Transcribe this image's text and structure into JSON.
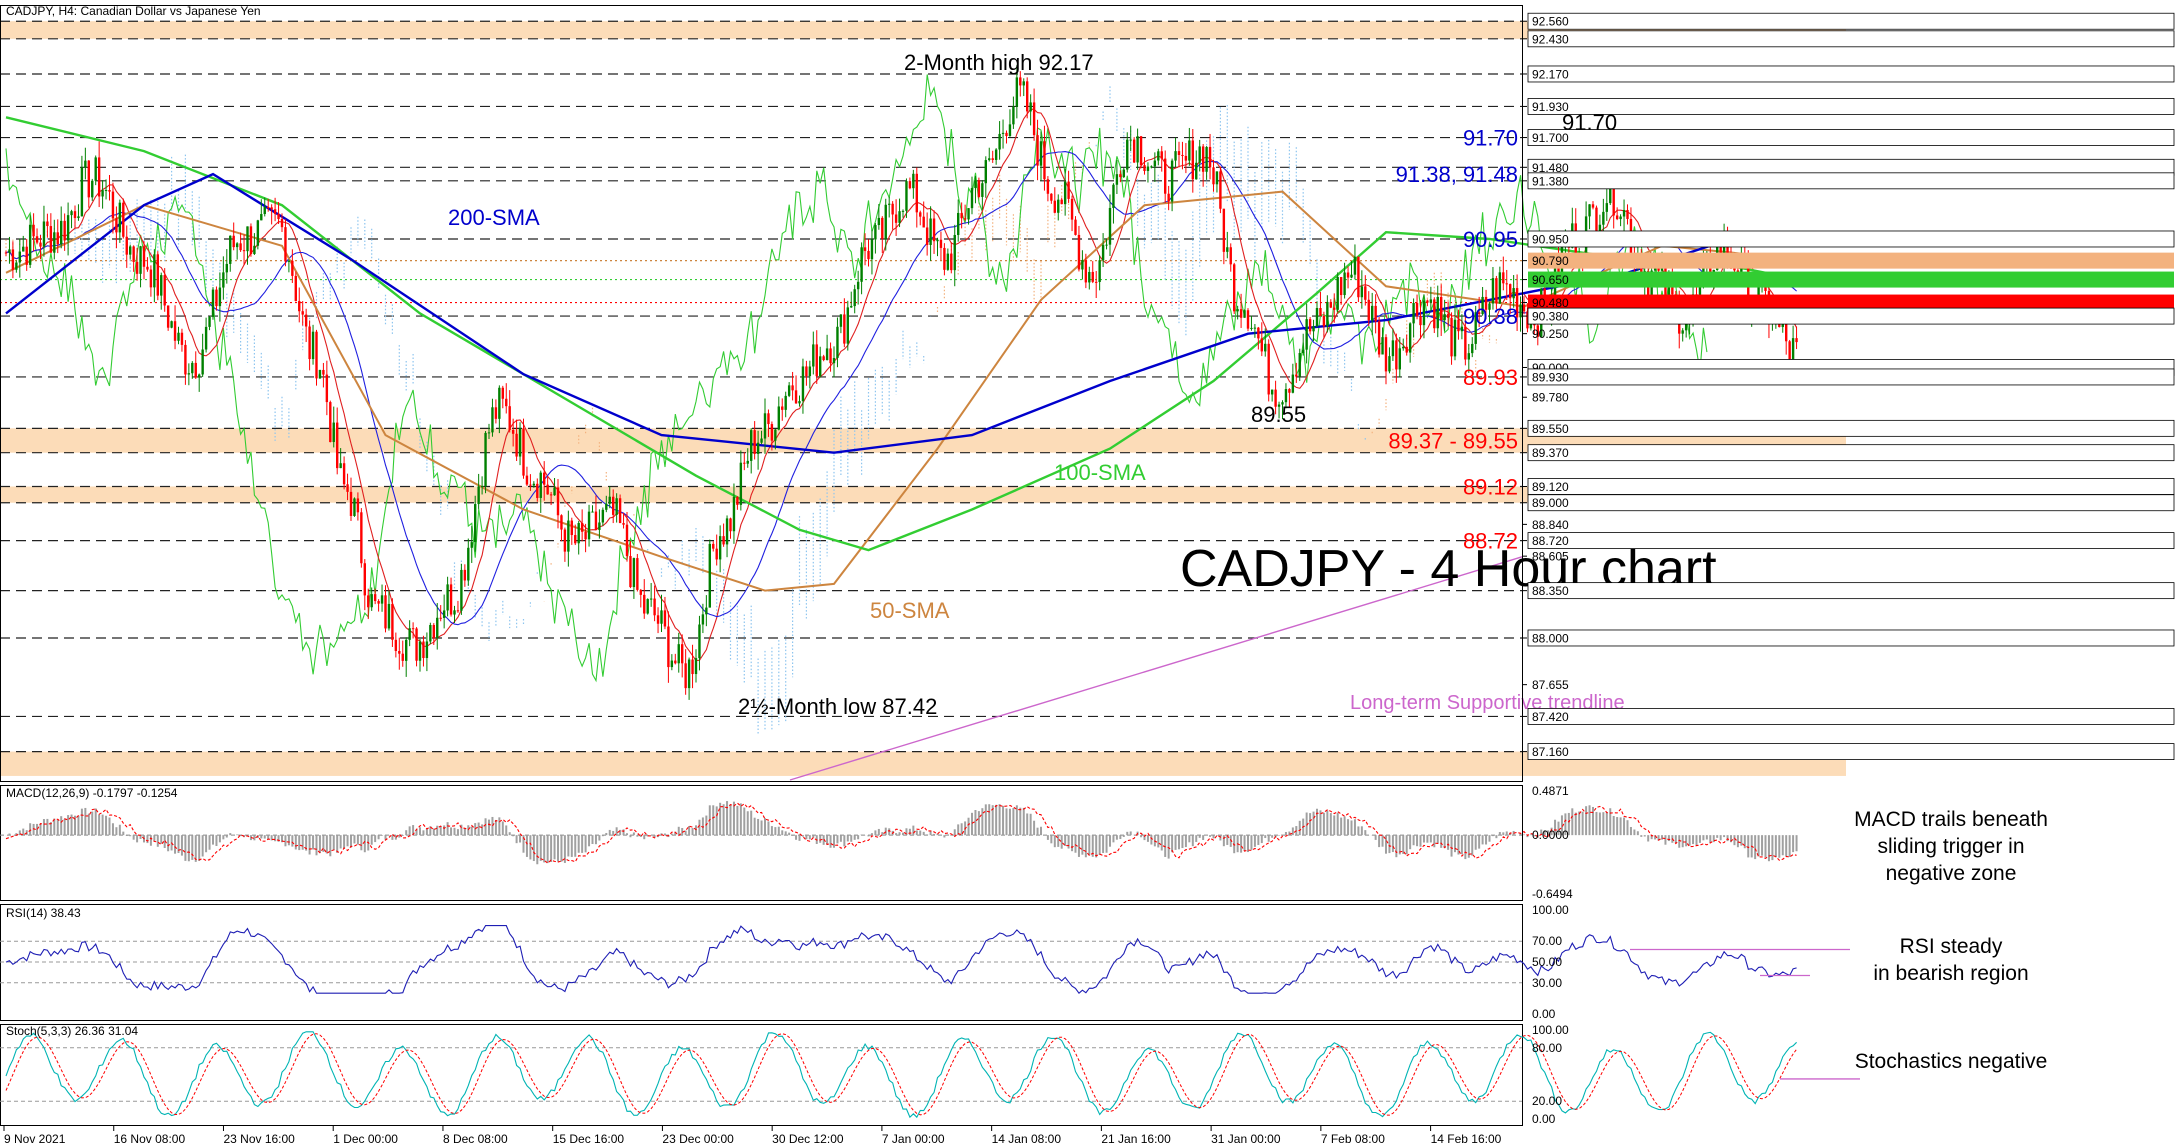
{
  "header": {
    "symbol_caption": "CADJPY, H4:  Canadian Dollar vs Japanese Yen"
  },
  "colors": {
    "bull": "#008000",
    "bear": "#ff0000",
    "sma200": "#0000cc",
    "sma100": "#32cd32",
    "sma50": "#cd853f",
    "trendline": "#cc66cc",
    "zone": "#fcdcb8",
    "cloud_up": "#8ec5ef",
    "cloud_down": "#f3b27f",
    "macd_hist": "#a0a0a0",
    "signal": "#ff0000",
    "rsi": "#1e1eb4",
    "stoch_main": "#00b4b4"
  },
  "chart_data": [
    {
      "type": "candlestick",
      "title": "CADJPY - 4 Hour chart",
      "ylim": [
        86.95,
        92.68
      ],
      "x_ticks": [
        "9 Nov 2021",
        "16 Nov 08:00",
        "23 Nov 16:00",
        "1 Dec 00:00",
        "8 Dec 08:00",
        "15 Dec 16:00",
        "23 Dec 00:00",
        "30 Dec 12:00",
        "7 Jan 00:00",
        "14 Jan 08:00",
        "21 Jan 16:00",
        "31 Jan 00:00",
        "7 Feb 08:00",
        "14 Feb 16:00"
      ],
      "price_axis_labels": [
        "92.560",
        "92.430",
        "92.170",
        "91.930",
        "91.700",
        "91.480",
        "91.380",
        "90.950",
        "90.790",
        "90.650",
        "90.480",
        "90.380",
        "90.250",
        "90.000",
        "89.930",
        "89.780",
        "89.550",
        "89.370",
        "89.120",
        "89.000",
        "88.840",
        "88.720",
        "88.605",
        "88.350",
        "88.000",
        "87.655",
        "87.420",
        "87.160"
      ],
      "highlighted_price_labels": [
        {
          "label": "90.790",
          "value": 90.79,
          "color": "#f3b27f"
        },
        {
          "label": "90.650",
          "value": 90.65,
          "color": "#32cd32"
        },
        {
          "label": "90.480",
          "value": 90.48,
          "color": "#ff0000"
        }
      ],
      "dashed_levels": [
        92.56,
        92.43,
        92.17,
        91.93,
        91.7,
        91.48,
        91.38,
        90.95,
        90.38,
        89.93,
        89.55,
        89.37,
        89.12,
        89.0,
        88.72,
        88.35,
        88.0,
        87.42,
        87.16
      ],
      "dotted_levels": [
        {
          "value": 90.79,
          "color": "#cd853f"
        },
        {
          "value": 90.65,
          "color": "#32cd32"
        },
        {
          "value": 90.48,
          "color": "#ff0000"
        }
      ],
      "zones": [
        [
          92.43,
          92.56
        ],
        [
          89.37,
          89.55
        ],
        [
          89.0,
          89.12
        ],
        [
          86.98,
          87.16
        ]
      ],
      "level_labels": [
        {
          "text": "91.70",
          "value": 91.7,
          "color": "#0000cc"
        },
        {
          "text": "91.38, 91.48",
          "value": 91.43,
          "color": "#0000cc"
        },
        {
          "text": "90.95",
          "value": 90.95,
          "color": "#0000cc"
        },
        {
          "text": "90.38",
          "value": 90.38,
          "color": "#0000cc"
        },
        {
          "text": "89.93",
          "value": 89.93,
          "color": "#ff0000"
        },
        {
          "text": "89.37 - 89.55",
          "value": 89.46,
          "color": "#ff0000"
        },
        {
          "text": "89.12",
          "value": 89.12,
          "color": "#ff0000"
        },
        {
          "text": "88.72",
          "value": 88.72,
          "color": "#ff0000"
        }
      ],
      "annotations": {
        "high": "2-Month high 92.17",
        "low": "2½-Month low 87.42",
        "peak": "91.70",
        "dip": "89.55",
        "sma200": "200-SMA",
        "sma100": "100-SMA",
        "sma50": "50-SMA",
        "trendline": "Long-term Supportive trendline"
      },
      "anchors": [
        {
          "i": 0,
          "v": 90.85
        },
        {
          "i": 8,
          "v": 91.0
        },
        {
          "i": 14,
          "v": 91.4
        },
        {
          "i": 22,
          "v": 90.8
        },
        {
          "i": 30,
          "v": 90.05
        },
        {
          "i": 38,
          "v": 90.95
        },
        {
          "i": 44,
          "v": 91.05
        },
        {
          "i": 50,
          "v": 90.1
        },
        {
          "i": 55,
          "v": 89.1
        },
        {
          "i": 60,
          "v": 88.2
        },
        {
          "i": 66,
          "v": 87.95
        },
        {
          "i": 72,
          "v": 88.3
        },
        {
          "i": 80,
          "v": 89.7
        },
        {
          "i": 86,
          "v": 89.2
        },
        {
          "i": 92,
          "v": 88.7
        },
        {
          "i": 98,
          "v": 88.9
        },
        {
          "i": 104,
          "v": 88.2
        },
        {
          "i": 110,
          "v": 87.75
        },
        {
          "i": 116,
          "v": 88.8
        },
        {
          "i": 122,
          "v": 89.5
        },
        {
          "i": 128,
          "v": 89.9
        },
        {
          "i": 134,
          "v": 90.2
        },
        {
          "i": 140,
          "v": 90.9
        },
        {
          "i": 146,
          "v": 91.3
        },
        {
          "i": 152,
          "v": 90.8
        },
        {
          "i": 158,
          "v": 91.4
        },
        {
          "i": 164,
          "v": 92.0
        },
        {
          "i": 170,
          "v": 91.3
        },
        {
          "i": 176,
          "v": 90.7
        },
        {
          "i": 182,
          "v": 91.7
        },
        {
          "i": 188,
          "v": 91.4
        },
        {
          "i": 194,
          "v": 91.6
        },
        {
          "i": 200,
          "v": 90.5
        },
        {
          "i": 206,
          "v": 89.85
        },
        {
          "i": 212,
          "v": 90.3
        },
        {
          "i": 218,
          "v": 90.7
        },
        {
          "i": 224,
          "v": 90.1
        },
        {
          "i": 230,
          "v": 90.5
        },
        {
          "i": 236,
          "v": 90.15
        },
        {
          "i": 242,
          "v": 90.6
        },
        {
          "i": 248,
          "v": 90.4
        },
        {
          "i": 254,
          "v": 90.95
        },
        {
          "i": 260,
          "v": 91.3
        },
        {
          "i": 266,
          "v": 90.7
        },
        {
          "i": 272,
          "v": 90.4
        },
        {
          "i": 278,
          "v": 90.9
        },
        {
          "i": 284,
          "v": 90.5
        },
        {
          "i": 290,
          "v": 90.1
        }
      ],
      "sma200": [
        [
          0,
          90.4
        ],
        [
          40,
          91.2
        ],
        [
          60,
          91.43
        ],
        [
          100,
          90.8
        ],
        [
          150,
          89.95
        ],
        [
          190,
          89.5
        ],
        [
          240,
          89.37
        ],
        [
          280,
          89.5
        ],
        [
          320,
          89.9
        ],
        [
          360,
          90.25
        ],
        [
          400,
          90.35
        ],
        [
          430,
          90.5
        ],
        [
          470,
          90.7
        ],
        [
          500,
          90.95
        ],
        [
          520,
          90.9
        ]
      ],
      "sma100": [
        [
          0,
          91.85
        ],
        [
          40,
          91.6
        ],
        [
          80,
          91.2
        ],
        [
          120,
          90.4
        ],
        [
          160,
          89.8
        ],
        [
          200,
          89.2
        ],
        [
          230,
          88.8
        ],
        [
          250,
          88.65
        ],
        [
          280,
          88.95
        ],
        [
          320,
          89.4
        ],
        [
          350,
          89.9
        ],
        [
          380,
          90.55
        ],
        [
          400,
          91.0
        ],
        [
          430,
          90.95
        ],
        [
          470,
          90.8
        ],
        [
          500,
          90.75
        ],
        [
          520,
          90.65
        ]
      ],
      "sma50": [
        [
          0,
          90.7
        ],
        [
          40,
          91.2
        ],
        [
          80,
          90.9
        ],
        [
          110,
          89.5
        ],
        [
          150,
          88.95
        ],
        [
          190,
          88.6
        ],
        [
          220,
          88.35
        ],
        [
          240,
          88.4
        ],
        [
          270,
          89.4
        ],
        [
          300,
          90.5
        ],
        [
          330,
          91.2
        ],
        [
          370,
          91.3
        ],
        [
          400,
          90.6
        ],
        [
          440,
          90.45
        ],
        [
          480,
          90.9
        ],
        [
          500,
          90.85
        ],
        [
          520,
          90.79
        ]
      ]
    },
    {
      "type": "bar",
      "title": "MACD(12,26,9) -0.1797 -0.1254",
      "ylim": [
        -0.6494,
        0.4871
      ],
      "axis_labels": [
        "0.4871",
        "0.0000",
        "-0.6494"
      ],
      "annotation": [
        "MACD trails beneath",
        "sliding trigger in",
        "negative zone"
      ]
    },
    {
      "type": "line",
      "title": "RSI(14) 38.43",
      "ylim": [
        0,
        100
      ],
      "axis_labels": [
        "100.00",
        "70.00",
        "50.00",
        "30.00",
        "0.00"
      ],
      "annotation": [
        "RSI steady",
        "in bearish region"
      ]
    },
    {
      "type": "line",
      "title": "Stoch(5,3,3) 26.36 31.04",
      "ylim": [
        0,
        100
      ],
      "axis_labels": [
        "100.00",
        "80.00",
        "20.00",
        "0.00"
      ],
      "annotation": [
        "Stochastics negative"
      ]
    }
  ]
}
